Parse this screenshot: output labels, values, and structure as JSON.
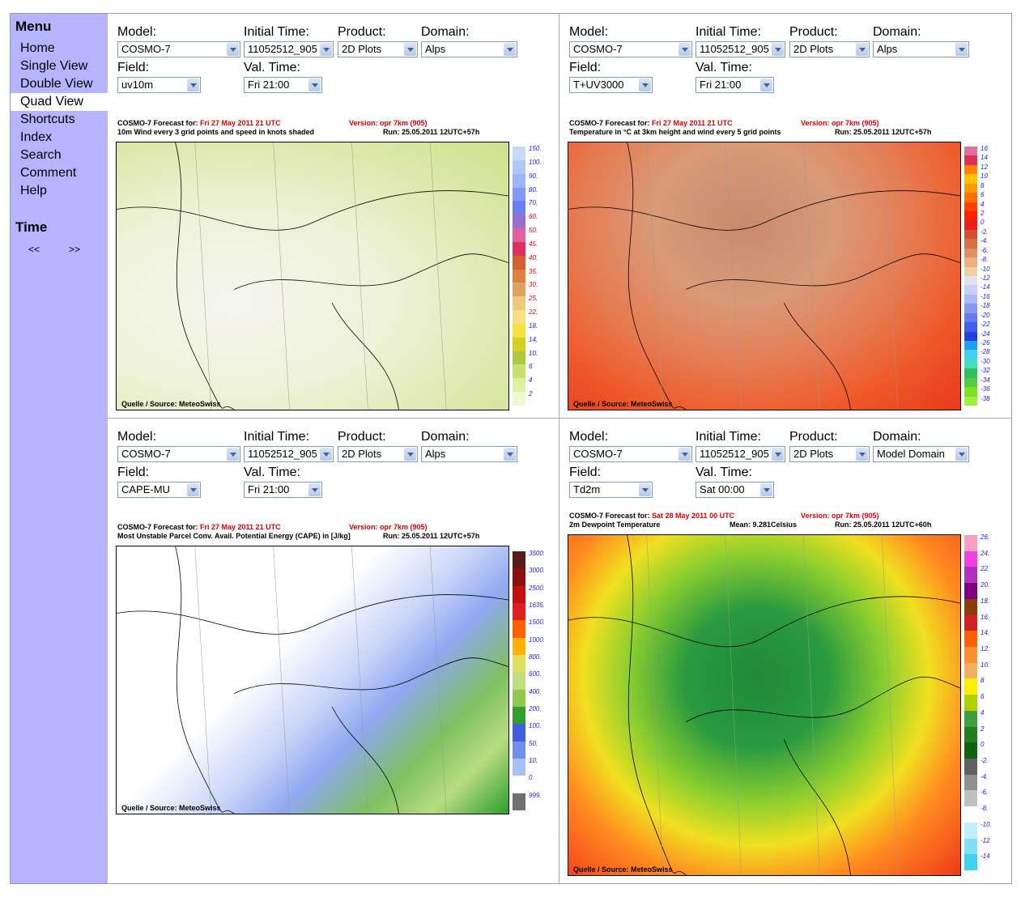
{
  "menu": {
    "title": "Menu",
    "items": [
      "Home",
      "Single View",
      "Double View",
      "Quad View",
      "Shortcuts",
      "Index",
      "Search",
      "Comment",
      "Help"
    ],
    "active": "Quad View",
    "time_title": "Time",
    "prev": "<<",
    "next": ">>"
  },
  "labels": {
    "model": "Model:",
    "initial_time": "Initial Time:",
    "product": "Product:",
    "domain": "Domain:",
    "field": "Field:",
    "val_time": "Val. Time:"
  },
  "source": "Quelle / Source: MeteoSwiss",
  "panels": [
    {
      "model": "COSMO-7",
      "initial_time": "11052512_905",
      "product": "2D Plots",
      "domain": "Alps",
      "field": "uv10m",
      "val_time": "Fri 21:00",
      "hdr_prefix": "COSMO-7 Forecast for: ",
      "hdr_date": "Fri 27 May 2011 21 UTC",
      "hdr_version": "Version: opr 7km (905)",
      "subtitle": "10m Wind every 3 grid points and speed in knots shaded",
      "mean": "",
      "run": "Run: 25.05.2011 12UTC+57h",
      "scale_labels": [
        "150.",
        "100.",
        "90.",
        "80.",
        "70.",
        "60.",
        "50.",
        "45.",
        "40.",
        "35.",
        "30.",
        "25.",
        "22.",
        "18.",
        "14.",
        "10.",
        "6",
        "4",
        "2"
      ],
      "scale_colors": [
        "#c9d9ff",
        "#b3c7ff",
        "#9db4ff",
        "#7f99ff",
        "#6a7ff0",
        "#9b6fd0",
        "#e060a0",
        "#e03060",
        "#d06030",
        "#e08040",
        "#e0a060",
        "#f0c880",
        "#f8e080",
        "#f8e040",
        "#d8d020",
        "#b0c840",
        "#c8e070",
        "#e0f0a0",
        "#f0f8d0"
      ]
    },
    {
      "model": "COSMO-7",
      "initial_time": "11052512_905",
      "product": "2D Plots",
      "domain": "Alps",
      "field": "T+UV3000",
      "val_time": "Fri 21:00",
      "hdr_prefix": "COSMO-7 Forecast for: ",
      "hdr_date": "Fri 27 May 2011 21 UTC",
      "hdr_version": "Version: opr 7km (905)",
      "subtitle": "Temperature in °C at 3km height and wind every 5 grid points",
      "mean": "",
      "run": "Run: 25.05.2011 12UTC+57h",
      "scale_labels": [
        "16",
        "14",
        "12",
        "10",
        "8",
        "6",
        "4",
        "2",
        "0",
        "-2.",
        "-4.",
        "-6.",
        "-8.",
        "-10",
        "-12",
        "-14",
        "-16",
        "-18",
        "-20",
        "-22",
        "-24",
        "-26",
        "-28",
        "-30",
        "-32",
        "-34",
        "-36",
        "-38"
      ],
      "scale_colors": [
        "#e070a0",
        "#e03050",
        "#ff8000",
        "#ffc000",
        "#ff9a00",
        "#ff7000",
        "#ff4000",
        "#ff2000",
        "#e82020",
        "#d05030",
        "#d87040",
        "#e09060",
        "#f0b080",
        "#f0d0a0",
        "#e0e0f0",
        "#c8d0f8",
        "#a8b8f8",
        "#8898f0",
        "#6878f0",
        "#4060f0",
        "#2040e0",
        "#20a0f0",
        "#40d0f0",
        "#40e0c0",
        "#30c060",
        "#50d040",
        "#80e020",
        "#a0f040"
      ]
    },
    {
      "model": "COSMO-7",
      "initial_time": "11052512_905",
      "product": "2D Plots",
      "domain": "Alps",
      "field": "CAPE-MU",
      "val_time": "Fri 21:00",
      "hdr_prefix": "COSMO-7 Forecast for: ",
      "hdr_date": "Fri 27 May 2011 21 UTC",
      "hdr_version": "Version: opr 7km (905)",
      "subtitle": "Most Unstable Parcel Conv. Avail. Potential Energy (CAPE) in [J/kg]",
      "mean": "",
      "run": "Run: 25.05.2011 12UTC+57h",
      "scale_labels": [
        "3500.",
        "3000.",
        "2500.",
        "1635.",
        "1500.",
        "1000.",
        "800.",
        "600.",
        "400.",
        "200.",
        "100.",
        "50.",
        "10.",
        "0.",
        "999."
      ],
      "scale_colors": [
        "#5a1a1a",
        "#8b1010",
        "#c01010",
        "#e02020",
        "#ff6000",
        "#ffb000",
        "#e0e060",
        "#c0e080",
        "#90c850",
        "#30a030",
        "#4060e0",
        "#7090f0",
        "#a8c0f8",
        "#ffffff",
        "#707070"
      ]
    },
    {
      "model": "COSMO-7",
      "initial_time": "11052512_905",
      "product": "2D Plots",
      "domain": "Model Domain",
      "field": "Td2m",
      "val_time": "Sat 00:00",
      "hdr_prefix": "COSMO-7 Forecast for: ",
      "hdr_date": "Sat 28 May 2011 00 UTC",
      "hdr_version": "Version: opr 7km (905)",
      "subtitle": "2m Dewpoint Temperature",
      "mean": "Mean: 9.281Celsius",
      "run": "Run: 25.05.2011 12UTC+60h",
      "scale_labels": [
        "26.",
        "24.",
        "22.",
        "20.",
        "18.",
        "16.",
        "14.",
        "12.",
        "10.",
        "8",
        "6",
        "4",
        "2",
        "0",
        "-2.",
        "-4.",
        "-6.",
        "-8.",
        "-10.",
        "-12",
        "-14"
      ],
      "scale_colors": [
        "#f8a0c0",
        "#f040e0",
        "#b030c0",
        "#800080",
        "#8b3a0a",
        "#d02020",
        "#ff6000",
        "#ff9030",
        "#f0b060",
        "#f8f000",
        "#b0d000",
        "#40a040",
        "#208020",
        "#106010",
        "#606060",
        "#909090",
        "#c0c0c0",
        "#ffffff",
        "#c0f0ff",
        "#80e0f8",
        "#40d0f0"
      ]
    }
  ],
  "map_labels": [
    "Quelle / Source: MeteoSwiss"
  ]
}
